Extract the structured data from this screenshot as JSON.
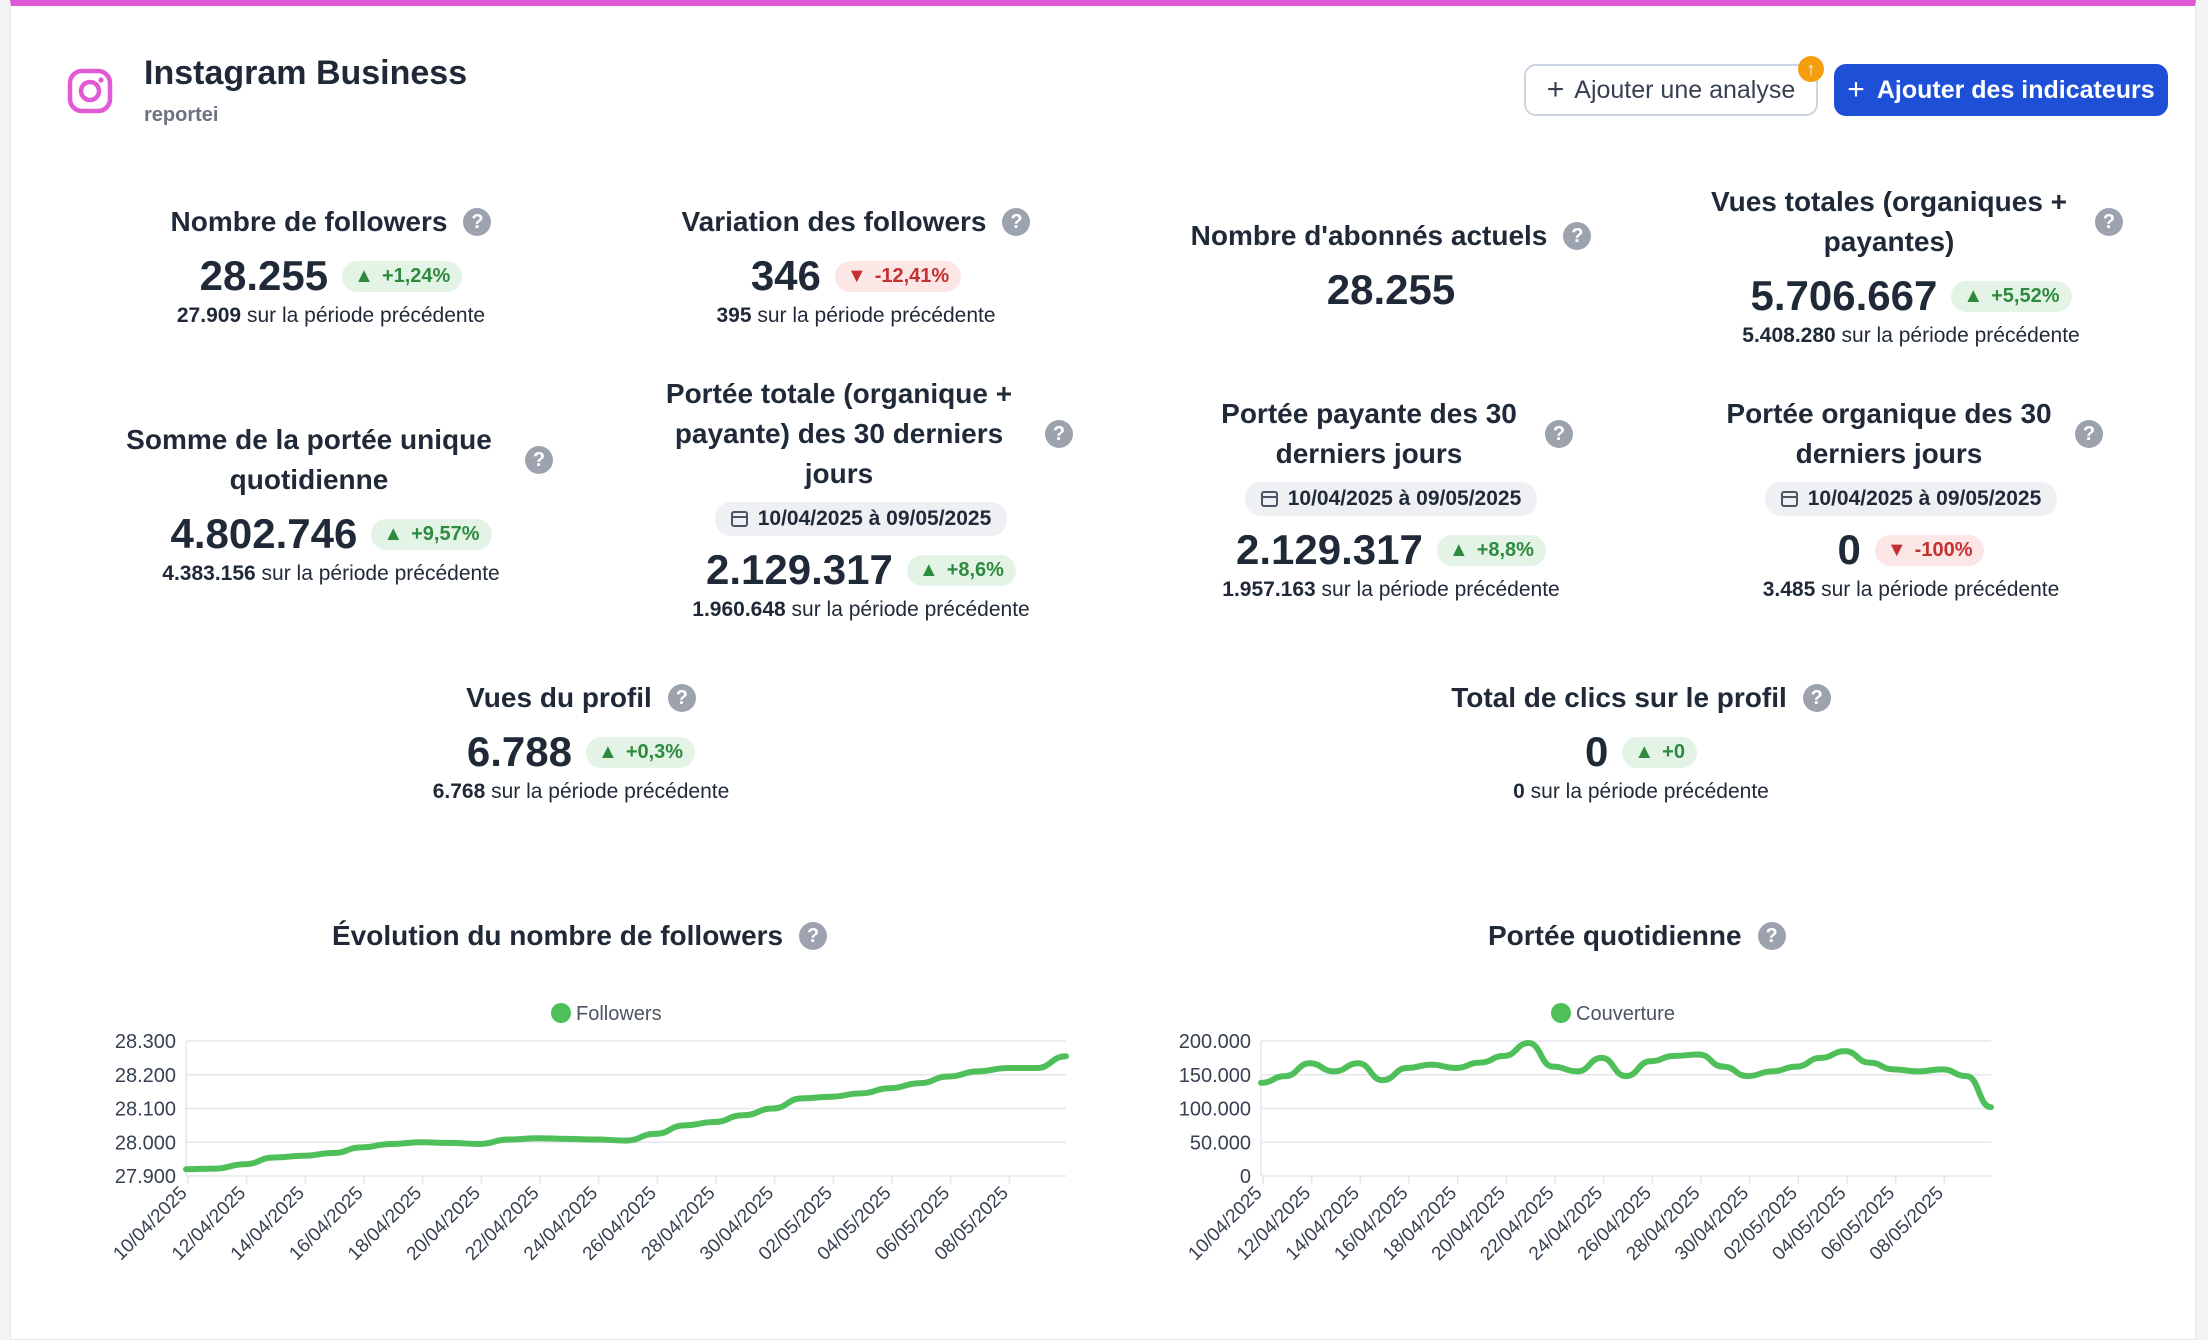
{
  "header": {
    "title": "Instagram Business",
    "subtitle": "reportei",
    "btn_analysis": "Ajouter une analyse",
    "btn_indicators": "Ajouter des indicateurs"
  },
  "prev_suffix": "sur la période précédente",
  "metrics": {
    "followers": {
      "title": "Nombre de followers",
      "value": "28.255",
      "delta": "+1,24%",
      "prev": "27.909"
    },
    "variation": {
      "title": "Variation des followers",
      "value": "346",
      "delta": "-12,41%",
      "prev": "395"
    },
    "abonnes": {
      "title": "Nombre d'abonnés actuels",
      "value": "28.255"
    },
    "vues_totales": {
      "title": "Vues totales (organiques + payantes)",
      "value": "5.706.667",
      "delta": "+5,52%",
      "prev": "5.408.280"
    },
    "somme_portee": {
      "title": "Somme de la portée unique quotidienne",
      "value": "4.802.746",
      "delta": "+9,57%",
      "prev": "4.383.156"
    },
    "portee_totale": {
      "title": "Portée totale (organique + payante) des 30 derniers jours",
      "date": "10/04/2025 à 09/05/2025",
      "value": "2.129.317",
      "delta": "+8,6%",
      "prev": "1.960.648"
    },
    "portee_payante": {
      "title": "Portée payante des 30 derniers jours",
      "date": "10/04/2025 à 09/05/2025",
      "value": "2.129.317",
      "delta": "+8,8%",
      "prev": "1.957.163"
    },
    "portee_organique": {
      "title": "Portée organique des 30 derniers jours",
      "date": "10/04/2025 à 09/05/2025",
      "value": "0",
      "delta": "-100%",
      "prev": "3.485"
    },
    "vues_profil": {
      "title": "Vues du profil",
      "value": "6.788",
      "delta": "+0,3%",
      "prev": "6.768"
    },
    "clics_profil": {
      "title": "Total de clics sur le profil",
      "value": "0",
      "delta": "+0",
      "prev": "0"
    }
  },
  "chart_data": [
    {
      "type": "line",
      "title": "Évolution du nombre de followers",
      "legend": "Followers",
      "color": "#4fbf5a",
      "ylim": [
        27900,
        28300
      ],
      "yticks": [
        "28.300",
        "28.200",
        "28.100",
        "28.000",
        "27.900"
      ],
      "xticks": [
        "10/04/2025",
        "12/04/2025",
        "14/04/2025",
        "16/04/2025",
        "18/04/2025",
        "20/04/2025",
        "22/04/2025",
        "24/04/2025",
        "26/04/2025",
        "28/04/2025",
        "30/04/2025",
        "02/05/2025",
        "04/05/2025",
        "06/05/2025",
        "08/05/2025"
      ],
      "values": [
        27920,
        27922,
        27935,
        27955,
        27960,
        27968,
        27985,
        27995,
        28000,
        27998,
        27995,
        28008,
        28012,
        28010,
        28008,
        28005,
        28025,
        28050,
        28060,
        28080,
        28100,
        28130,
        28135,
        28145,
        28160,
        28175,
        28195,
        28210,
        28220,
        28220,
        28255
      ]
    },
    {
      "type": "line",
      "title": "Portée quotidienne",
      "legend": "Couverture",
      "color": "#4fbf5a",
      "ylim": [
        0,
        200000
      ],
      "yticks": [
        "200.000",
        "150.000",
        "100.000",
        "50.000",
        "0"
      ],
      "xticks": [
        "10/04/2025",
        "12/04/2025",
        "14/04/2025",
        "16/04/2025",
        "18/04/2025",
        "20/04/2025",
        "22/04/2025",
        "24/04/2025",
        "26/04/2025",
        "28/04/2025",
        "30/04/2025",
        "02/05/2025",
        "04/05/2025",
        "06/05/2025",
        "08/05/2025"
      ],
      "values": [
        138000,
        148000,
        167000,
        155000,
        167000,
        142000,
        160000,
        165000,
        160000,
        168000,
        178000,
        197000,
        162000,
        155000,
        175000,
        148000,
        170000,
        178000,
        180000,
        162000,
        148000,
        155000,
        162000,
        175000,
        185000,
        168000,
        158000,
        155000,
        158000,
        148000,
        102000
      ]
    }
  ]
}
